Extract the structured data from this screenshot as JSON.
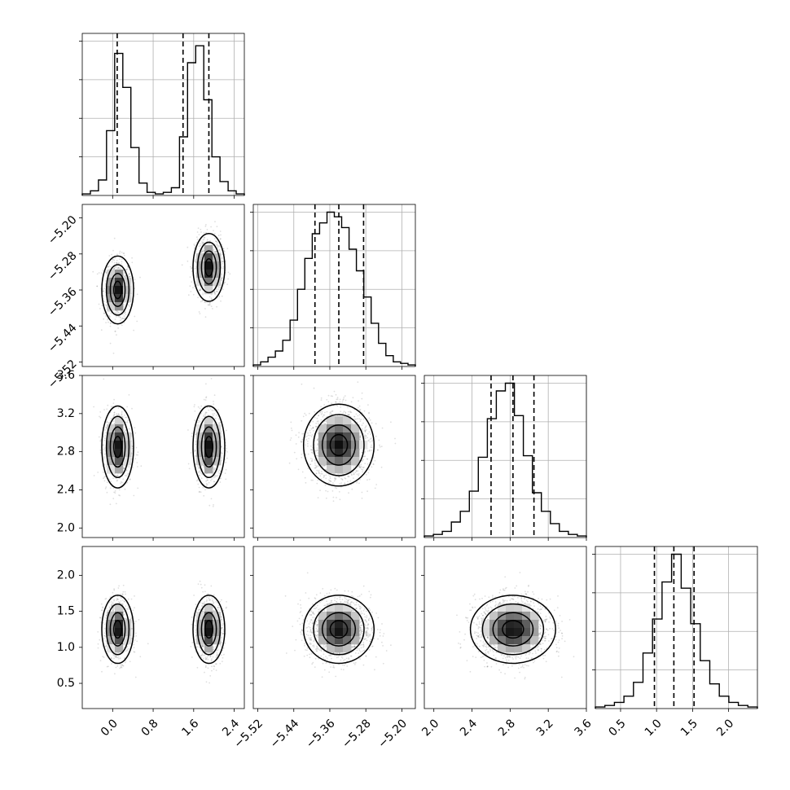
{
  "chart_data": {
    "type": "corner",
    "grid": true,
    "n_params": 4,
    "parameter_labels": [
      "",
      "",
      "",
      ""
    ],
    "ranges": [
      [
        -0.6,
        2.6
      ],
      [
        -5.53,
        -5.17
      ],
      [
        1.9,
        3.6
      ],
      [
        0.15,
        2.4
      ]
    ],
    "ticks": [
      [
        "0.0",
        "0.8",
        "1.6",
        "2.4"
      ],
      [
        "−5.52",
        "−5.44",
        "−5.36",
        "−5.28",
        "−5.20"
      ],
      [
        "2.0",
        "2.4",
        "2.8",
        "3.2",
        "3.6"
      ],
      [
        "0.5",
        "1.0",
        "1.5",
        "2.0"
      ]
    ],
    "marginal_histograms": [
      {
        "param": 0,
        "bin_range": [
          -0.6,
          2.6
        ],
        "counts": [
          0.01,
          0.03,
          0.1,
          0.42,
          0.92,
          0.7,
          0.31,
          0.08,
          0.02,
          0.01,
          0.02,
          0.05,
          0.38,
          0.86,
          0.97,
          0.62,
          0.25,
          0.09,
          0.03,
          0.01
        ],
        "quantile_lines": [
          0.09,
          1.39,
          1.9
        ]
      },
      {
        "param": 1,
        "bin_range": [
          -5.53,
          -5.17
        ],
        "counts": [
          0.01,
          0.03,
          0.06,
          0.1,
          0.17,
          0.3,
          0.5,
          0.7,
          0.86,
          0.93,
          1.0,
          0.97,
          0.9,
          0.76,
          0.62,
          0.45,
          0.28,
          0.15,
          0.07,
          0.03,
          0.02,
          0.01
        ],
        "quantile_lines": [
          -5.393,
          -5.34,
          -5.285
        ]
      },
      {
        "param": 2,
        "bin_range": [
          1.9,
          3.6
        ],
        "counts": [
          0.01,
          0.02,
          0.04,
          0.1,
          0.17,
          0.3,
          0.52,
          0.77,
          0.95,
          1.0,
          0.79,
          0.53,
          0.29,
          0.17,
          0.09,
          0.04,
          0.02,
          0.01
        ],
        "quantile_lines": [
          2.6,
          2.83,
          3.05
        ]
      },
      {
        "param": 3,
        "bin_range": [
          0.15,
          2.4
        ],
        "counts": [
          0.01,
          0.02,
          0.04,
          0.08,
          0.17,
          0.36,
          0.58,
          0.82,
          1.0,
          0.78,
          0.55,
          0.31,
          0.16,
          0.08,
          0.04,
          0.02,
          0.01
        ],
        "quantile_lines": [
          0.97,
          1.24,
          1.52
        ]
      }
    ],
    "joint_distributions": [
      {
        "x_param": 0,
        "y_param": 1,
        "modes": [
          {
            "x": 0.1,
            "y": -5.36,
            "sx": 0.14,
            "sy": 0.035,
            "w": 0.5
          },
          {
            "x": 1.9,
            "y": -5.31,
            "sx": 0.14,
            "sy": 0.035,
            "w": 0.5
          }
        ]
      },
      {
        "x_param": 0,
        "y_param": 2,
        "modes": [
          {
            "x": 0.1,
            "y": 2.85,
            "sx": 0.14,
            "sy": 0.2,
            "w": 0.5
          },
          {
            "x": 1.9,
            "y": 2.85,
            "sx": 0.14,
            "sy": 0.2,
            "w": 0.5
          }
        ]
      },
      {
        "x_param": 0,
        "y_param": 3,
        "modes": [
          {
            "x": 0.1,
            "y": 1.25,
            "sx": 0.14,
            "sy": 0.22,
            "w": 0.5
          },
          {
            "x": 1.9,
            "y": 1.25,
            "sx": 0.14,
            "sy": 0.22,
            "w": 0.5
          }
        ]
      },
      {
        "x_param": 1,
        "y_param": 2,
        "modes": [
          {
            "x": -5.34,
            "y": 2.87,
            "sx": 0.035,
            "sy": 0.2,
            "w": 1.0
          }
        ]
      },
      {
        "x_param": 1,
        "y_param": 3,
        "modes": [
          {
            "x": -5.34,
            "y": 1.25,
            "sx": 0.035,
            "sy": 0.22,
            "w": 1.0
          }
        ]
      },
      {
        "x_param": 2,
        "y_param": 3,
        "modes": [
          {
            "x": 2.83,
            "y": 1.25,
            "sx": 0.2,
            "sy": 0.22,
            "w": 1.0
          }
        ]
      }
    ]
  }
}
